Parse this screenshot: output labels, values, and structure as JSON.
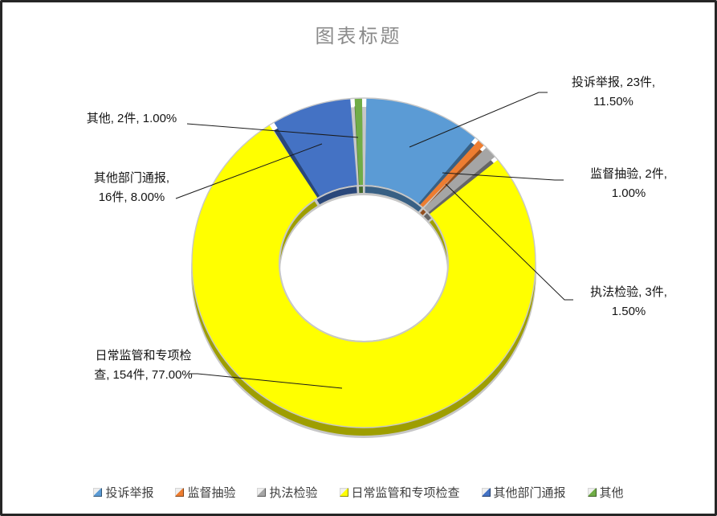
{
  "chart_title": "图表标题",
  "chart_data": {
    "type": "pie",
    "subtype": "donut-3d",
    "title": "图表标题",
    "unit": "件",
    "total": 200,
    "hole_ratio": 0.49,
    "start_angle_deg": 0,
    "direction": "clockwise",
    "legend_position": "bottom",
    "grid": false,
    "series": [
      {
        "name": "投诉举报",
        "value": 23,
        "percent": "11.50%",
        "label_lines": [
          "投诉举报, 23件,",
          "11.50%"
        ],
        "color": "#5B9BD5"
      },
      {
        "name": "监督抽验",
        "value": 2,
        "percent": "1.00%",
        "label_lines": [
          "监督抽验, 2件,",
          "1.00%"
        ],
        "color": "#ED7D31"
      },
      {
        "name": "执法检验",
        "value": 3,
        "percent": "1.50%",
        "label_lines": [
          "执法检验, 3件,",
          "1.50%"
        ],
        "color": "#A5A5A5"
      },
      {
        "name": "日常监管和专项检查",
        "value": 154,
        "percent": "77.00%",
        "label_lines": [
          "日常监管和专项检",
          "查, 154件, 77.00%"
        ],
        "color": "#FFFF00"
      },
      {
        "name": "其他部门通报",
        "value": 16,
        "percent": "8.00%",
        "label_lines": [
          "其他部门通报,",
          "16件, 8.00%"
        ],
        "color": "#4472C4"
      },
      {
        "name": "其他",
        "value": 2,
        "percent": "1.00%",
        "label_lines": [
          "其他, 2件, 1.00%"
        ],
        "color": "#70AD47"
      }
    ],
    "legend_labels": [
      "投诉举报",
      "监督抽验",
      "执法检验",
      "日常监管和专项检查",
      "其他部门通报",
      "其他"
    ],
    "colors": {
      "title_text": "#8a8a8a",
      "label_text": "#141414",
      "legend_text": "#3f3f3f",
      "leader_line": "#1a1a1a",
      "rim_silver": "#c7c7c7"
    }
  }
}
